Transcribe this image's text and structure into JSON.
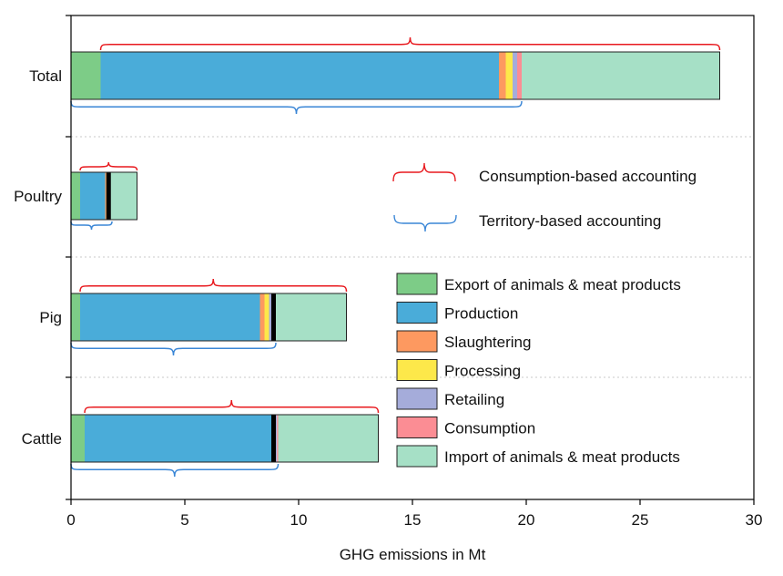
{
  "chart_data": {
    "type": "bar",
    "orientation": "horizontal",
    "stacked": true,
    "xlabel": "GHG emissions in Mt",
    "xlim": [
      0,
      30
    ],
    "xticks": [
      0,
      5,
      10,
      15,
      20,
      25,
      30
    ],
    "categories": [
      "Total",
      "Poultry",
      "Pig",
      "Cattle"
    ],
    "series": [
      {
        "name": "Export of animals & meat products",
        "color": "#7dcc87",
        "values": [
          1.3,
          0.4,
          0.4,
          0.6
        ]
      },
      {
        "name": "Production",
        "color": "#4aacd9",
        "values": [
          17.5,
          1.1,
          7.9,
          8.3
        ]
      },
      {
        "name": "Slaughtering",
        "color": "#fd9960",
        "values": [
          0.3,
          0.05,
          0.2,
          0.05
        ]
      },
      {
        "name": "Processing",
        "color": "#fde84a",
        "values": [
          0.3,
          0.05,
          0.2,
          0.05
        ]
      },
      {
        "name": "Retailing",
        "color": "#a5acda",
        "values": [
          0.2,
          0.05,
          0.1,
          0.05
        ]
      },
      {
        "name": "Consumption",
        "color": "#fb8d94",
        "values": [
          0.2,
          0.05,
          0.1,
          0.05
        ]
      },
      {
        "name": "Import of animals & meat products",
        "color": "#a6e0c6",
        "values": [
          8.7,
          1.2,
          3.2,
          4.4
        ]
      }
    ],
    "segment_separators": [
      {
        "category": "Poultry",
        "after_series": "Retailing",
        "color": "#000000"
      },
      {
        "category": "Pig",
        "after_series": "Consumption",
        "color": "#000000"
      },
      {
        "category": "Cattle",
        "after_series": "Production",
        "color": "#000000"
      }
    ],
    "brackets": {
      "consumption_based": {
        "label": "Consumption-based accounting",
        "color": "#e8191e",
        "ranges": {
          "Total": [
            1.3,
            28.5
          ],
          "Poultry": [
            0.4,
            2.9
          ],
          "Pig": [
            0.4,
            12.1
          ],
          "Cattle": [
            0.6,
            13.5
          ]
        }
      },
      "territory_based": {
        "label": "Territory-based accounting",
        "color": "#3a86d6",
        "ranges": {
          "Total": [
            0,
            19.8
          ],
          "Poultry": [
            0,
            1.8
          ],
          "Pig": [
            0,
            9.0
          ],
          "Cattle": [
            0,
            9.1
          ]
        }
      }
    }
  }
}
